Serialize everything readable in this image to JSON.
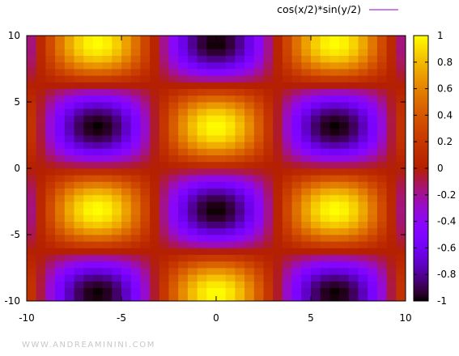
{
  "watermark": "WWW.ANDREAMININI.COM",
  "chart_data": {
    "type": "heatmap",
    "title": "",
    "xlabel": "",
    "ylabel": "",
    "legend": [
      {
        "label": "cos(x/2)*sin(y/2)",
        "color": "#9400d3",
        "placement": "top-right"
      }
    ],
    "function": "cos(x/2)*sin(y/2)",
    "xlim": [
      -10,
      10
    ],
    "ylim": [
      -10,
      10
    ],
    "x_ticks": [
      -10,
      -5,
      0,
      5,
      10
    ],
    "y_ticks": [
      -10,
      -5,
      0,
      5,
      10
    ],
    "x_tick_labels": [
      "-10",
      "-5",
      "0",
      "5",
      "10"
    ],
    "y_tick_labels": [
      "-10",
      "-5",
      "0",
      "5",
      "10"
    ],
    "grid_step": 0.5,
    "colorbar": {
      "range": [
        -1,
        1
      ],
      "palette": "gnuplot rgbformulae 7,5,15 (black-purple-red-orange-yellow)",
      "ticks": [
        1,
        0.8,
        0.6,
        0.4,
        0.2,
        0,
        -0.2,
        -0.4,
        -0.6,
        -0.8,
        -1
      ],
      "tick_labels": [
        "1",
        "0.8",
        "0.6",
        "0.4",
        "0.2",
        "0",
        "-0.2",
        "-0.4",
        "-0.6",
        "-0.8",
        "-1"
      ]
    },
    "grid": false
  }
}
